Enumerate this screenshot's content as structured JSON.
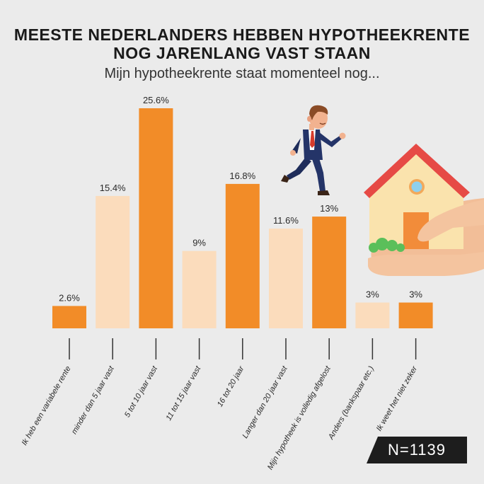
{
  "title_line1": "MEESTE NEDERLANDERS HEBBEN HYPOTHEEKRENTE",
  "title_line2": "NOG JARENLANG VAST STAAN",
  "subtitle": "Mijn hypotheekrente staat momenteel nog...",
  "sample_size": "N=1139",
  "colors": {
    "dark_bar": "#f28c28",
    "light_bar": "#fbdcbc",
    "background": "#ebebeb"
  },
  "chart_data": {
    "type": "bar",
    "title": "MEESTE NEDERLANDERS HEBBEN HYPOTHEEKRENTE NOG JARENLANG VAST STAAN",
    "subtitle": "Mijn hypotheekrente staat momenteel nog...",
    "categories": [
      "Ik heb een variabele rente",
      "minder dan 5 jaar vast",
      "5 tot 10 jaar vast",
      "11 tot 15 jaar vast",
      "16 tot 20 jaar",
      "Langer dan 20 jaar vast",
      "Mijn hypotheek is volledig afgelost",
      "Anders (bankspaar etc.)",
      "Ik weet het niet zeker"
    ],
    "values": [
      2.6,
      15.4,
      25.6,
      9,
      16.8,
      11.6,
      13,
      3,
      3
    ],
    "value_labels": [
      "2.6%",
      "15.4%",
      "25.6%",
      "9%",
      "16.8%",
      "11.6%",
      "13%",
      "3%",
      "3%"
    ],
    "bar_shades": [
      "dark",
      "light",
      "dark",
      "light",
      "dark",
      "light",
      "dark",
      "light",
      "dark"
    ],
    "ylim": [
      0,
      25.6
    ],
    "unit": "%",
    "grid": false,
    "legend": "none"
  }
}
